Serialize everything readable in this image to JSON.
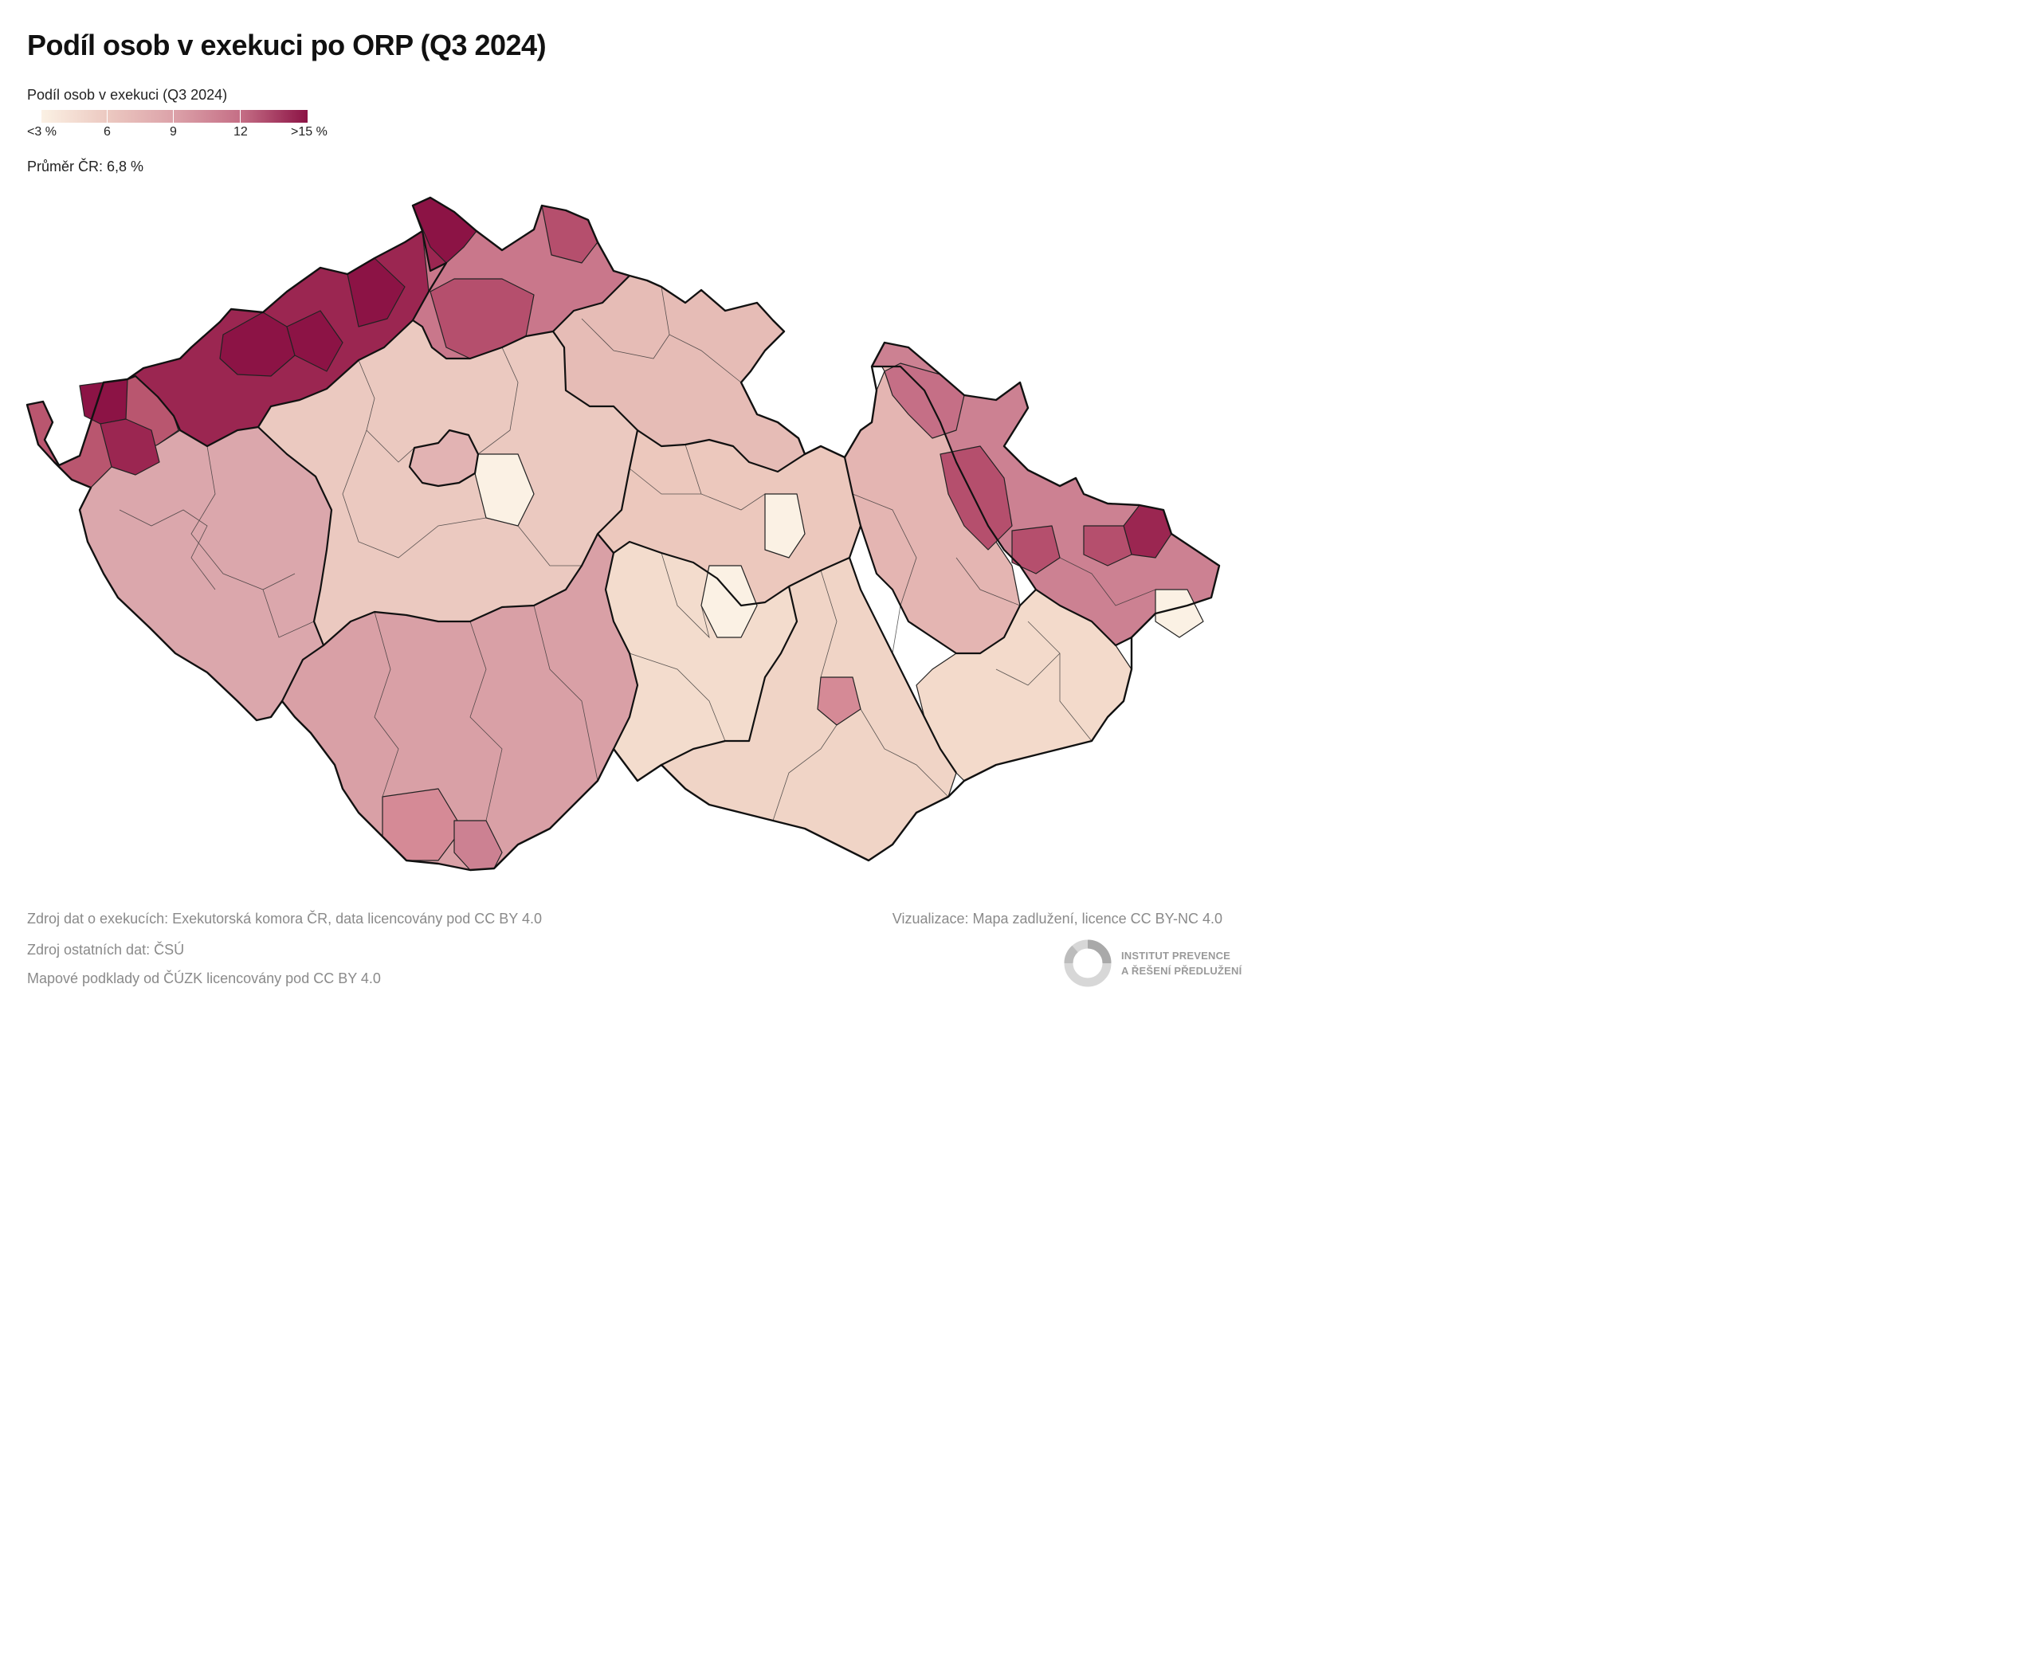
{
  "title": "Podíl osob v exekuci po ORP (Q3 2024)",
  "legend": {
    "title": "Podíl osob v exekuci (Q3 2024)",
    "ticks": [
      "<3 %",
      "6",
      "9",
      "12",
      ">15 %"
    ],
    "colors": [
      "#f7e9d8",
      "#e9bfb8",
      "#d58a96",
      "#b54f6d",
      "#8c1345"
    ]
  },
  "average_label": "Průměr ČR: 6,8 %",
  "sources": [
    "Zdroj dat o exekucích: Exekutorská komora ČR, data licencovány pod CC BY 4.0",
    "Zdroj ostatních dat: ČSÚ",
    "Mapové podklady od ČÚZK licencovány pod CC BY 4.0"
  ],
  "visualization_credit": "Vizualizace: Mapa zadlužení, licence CC BY-NC 4.0",
  "logo": {
    "line1": "INSTITUT PREVENCE",
    "line2": "A ŘEŠENÍ PŘEDLUŽENÍ"
  },
  "map": {
    "regions": [
      {
        "name": "Karlovarský kraj",
        "level": 4
      },
      {
        "name": "Ústecký kraj",
        "level": 4
      },
      {
        "name": "Liberecký kraj",
        "level": 3
      },
      {
        "name": "Plzeňský kraj",
        "level": 2
      },
      {
        "name": "Středočeský kraj",
        "level": 1
      },
      {
        "name": "Praha",
        "level": 2
      },
      {
        "name": "Královéhradecký kraj",
        "level": 1
      },
      {
        "name": "Pardubický kraj",
        "level": 1
      },
      {
        "name": "Jihočeský kraj",
        "level": 2
      },
      {
        "name": "Vysočina",
        "level": 0
      },
      {
        "name": "Jihomoravský kraj",
        "level": 1
      },
      {
        "name": "Olomoucký kraj",
        "level": 2
      },
      {
        "name": "Moravskoslezský kraj",
        "level": 3
      },
      {
        "name": "Zlínský kraj",
        "level": 0
      }
    ]
  }
}
